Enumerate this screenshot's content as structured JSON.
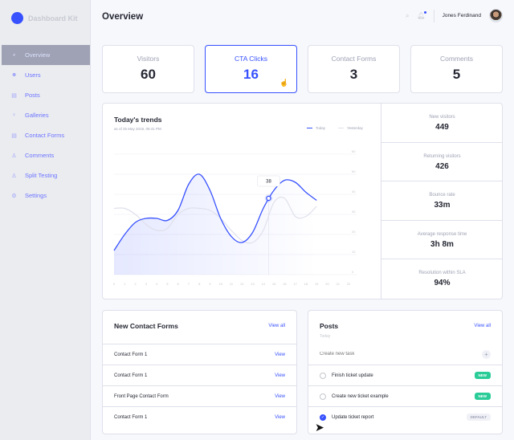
{
  "app": {
    "name": "Dashboard Kit",
    "accent": "#3751ff"
  },
  "sidebar": {
    "items": [
      {
        "label": "Overview",
        "icon": "pie-chart-icon",
        "active": true
      },
      {
        "label": "Users",
        "icon": "users-icon"
      },
      {
        "label": "Posts",
        "icon": "document-icon"
      },
      {
        "label": "Galleries",
        "icon": "lightbulb-icon"
      },
      {
        "label": "Contact Forms",
        "icon": "form-icon"
      },
      {
        "label": "Comments",
        "icon": "person-icon"
      },
      {
        "label": "Split Testing",
        "icon": "person-icon"
      },
      {
        "label": "Settings",
        "icon": "gear-icon"
      }
    ]
  },
  "header": {
    "title": "Overview",
    "user": "Jones Ferdinand"
  },
  "stats": [
    {
      "label": "Visitors",
      "value": "60"
    },
    {
      "label": "CTA Clicks",
      "value": "16"
    },
    {
      "label": "Contact Forms",
      "value": "3"
    },
    {
      "label": "Comments",
      "value": "5"
    }
  ],
  "trends": {
    "title": "Today's trends",
    "subtitle": "as of 25 May 2019, 09:41 PM",
    "tooltip": "38",
    "side": [
      {
        "label": "New visitors",
        "value": "449"
      },
      {
        "label": "Returning visitors",
        "value": "426"
      },
      {
        "label": "Bounce rate",
        "value": "33m"
      },
      {
        "label": "Average response time",
        "value": "3h 8m"
      },
      {
        "label": "Resolution within SLA",
        "value": "94%"
      }
    ]
  },
  "chart_data": {
    "type": "line",
    "x": [
      0,
      1,
      2,
      3,
      4,
      5,
      6,
      7,
      8,
      9,
      10,
      11,
      12,
      13,
      14,
      15,
      16,
      17,
      18,
      19
    ],
    "xticks": [
      "0",
      "1",
      "2",
      "3",
      "4",
      "5",
      "6",
      "7",
      "8",
      "9",
      "10",
      "11",
      "12",
      "13",
      "14",
      "15",
      "16",
      "17",
      "18",
      "19",
      "20",
      "21",
      "22"
    ],
    "yticks": [
      "0",
      "10",
      "20",
      "30",
      "40",
      "50",
      "60"
    ],
    "xlim": [
      0,
      22
    ],
    "ylim": [
      0,
      60
    ],
    "grid": true,
    "legend": "top-right",
    "series": [
      {
        "name": "Today",
        "color": "#3751ff",
        "values": [
          12,
          20,
          26,
          28,
          28,
          27,
          32,
          45,
          50,
          42,
          28,
          19,
          16,
          21,
          33,
          42,
          47,
          46,
          41,
          37
        ]
      },
      {
        "name": "Yesterday",
        "color": "#dfe0eb",
        "values": [
          33,
          33,
          30,
          25,
          22,
          23,
          30,
          33,
          33,
          32,
          28,
          22,
          17,
          16,
          22,
          36,
          38,
          29,
          29,
          34
        ]
      }
    ]
  },
  "contact_forms": {
    "title": "New Contact Forms",
    "view_all": "View all",
    "rows": [
      {
        "name": "Contact Form 1",
        "action": "View"
      },
      {
        "name": "Contact Form 1",
        "action": "View"
      },
      {
        "name": "Front Page Contact Form",
        "action": "View"
      },
      {
        "name": "Contact Form 1",
        "action": "View"
      }
    ]
  },
  "posts": {
    "title": "Posts",
    "subtitle": "Today",
    "view_all": "View all",
    "placeholder": "Create new task",
    "tasks": [
      {
        "name": "Finish ticket update",
        "badge": "NEW",
        "done": false
      },
      {
        "name": "Create new ticket example",
        "badge": "NEW",
        "done": false
      },
      {
        "name": "Update ticket report",
        "badge": "DEFAULT",
        "done": true
      }
    ]
  }
}
